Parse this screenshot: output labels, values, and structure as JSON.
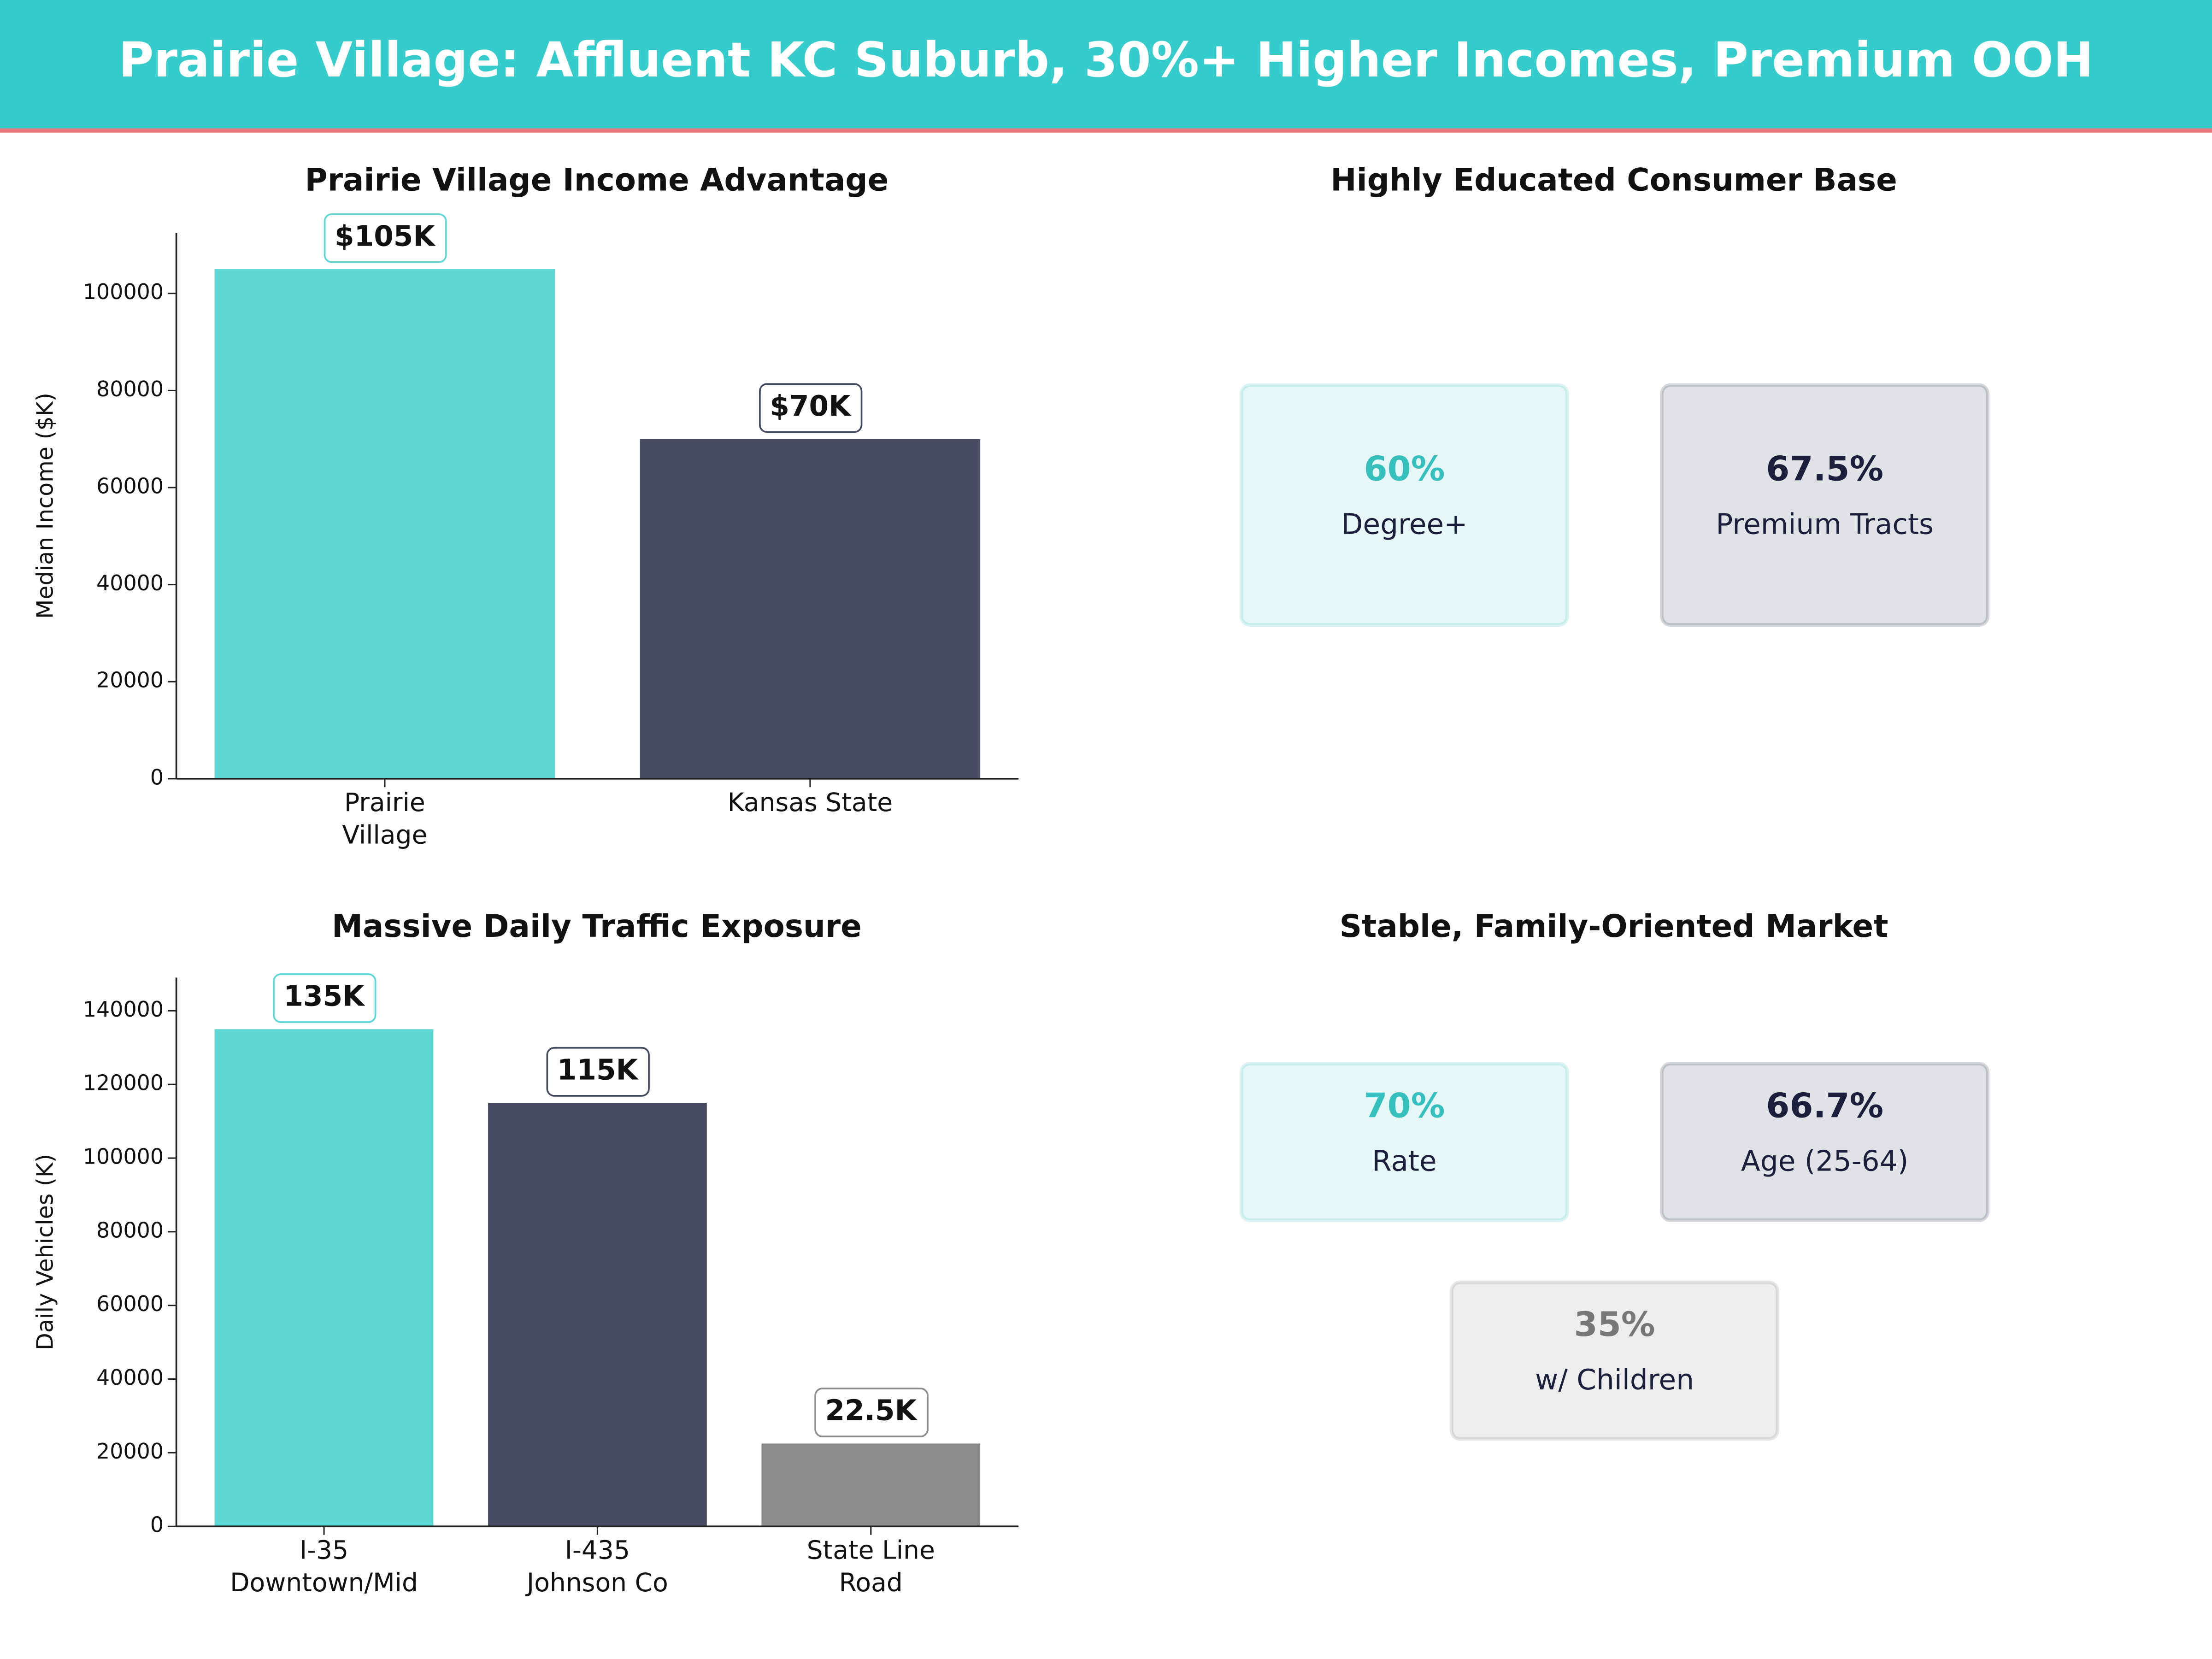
{
  "title": "Prairie Village: Affluent KC Suburb, 30%+ Higher Incomes, Premium OOH",
  "chart_data": [
    {
      "type": "bar",
      "title": "Prairie Village Income Advantage",
      "ylabel": "Median Income ($K)",
      "categories": [
        "Prairie\nVillage",
        "Kansas State"
      ],
      "values": [
        105000,
        70000
      ],
      "value_labels": [
        "$105K",
        "$70K"
      ],
      "colors": [
        "#5dd8d4",
        "#474b61"
      ],
      "ylim": [
        0,
        112500
      ],
      "yticks": [
        0,
        20000,
        40000,
        60000,
        80000,
        100000
      ]
    },
    {
      "type": "stat-cards",
      "title": "Highly Educated Consumer Base",
      "categories": [
        "Degree+",
        "Premium Tracts"
      ],
      "values": [
        60,
        67.5
      ],
      "value_labels": [
        "60%",
        "67.5%"
      ],
      "colors": [
        "#35c0bd",
        "#1b1f3b"
      ]
    },
    {
      "type": "bar",
      "title": "Massive Daily Traffic Exposure",
      "ylabel": "Daily Vehicles (K)",
      "categories": [
        "I-35\nDowntown/Mid",
        "I-435\nJohnson Co",
        "State Line\nRoad"
      ],
      "values": [
        135000,
        115000,
        22500
      ],
      "value_labels": [
        "135K",
        "115K",
        "22.5K"
      ],
      "colors": [
        "#5dd8d4",
        "#474b61",
        "#8c8c8c"
      ],
      "ylim": [
        0,
        149000
      ],
      "yticks": [
        0,
        20000,
        40000,
        60000,
        80000,
        100000,
        120000,
        140000
      ]
    },
    {
      "type": "stat-cards",
      "title": "Stable, Family-Oriented Market",
      "categories": [
        "Rate",
        "Age (25-64)",
        "w/ Children"
      ],
      "values": [
        70,
        66.7,
        35
      ],
      "value_labels": [
        "70%",
        "66.7%",
        "35%"
      ],
      "colors": [
        "#35c0bd",
        "#1b1f3b",
        "#777777"
      ]
    }
  ]
}
